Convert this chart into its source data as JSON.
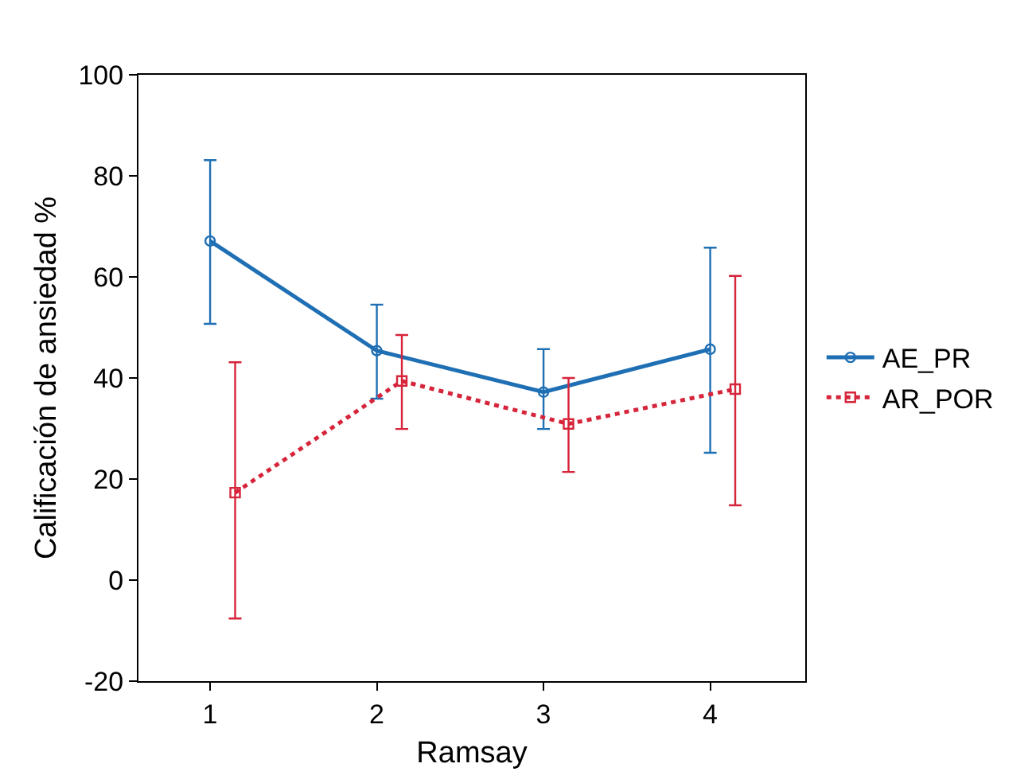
{
  "chart_data": {
    "type": "line",
    "xlabel": "Ramsay",
    "ylabel": "Calificación de ansiedad %",
    "xlim": [
      0.57,
      4.57
    ],
    "xticks": [
      1,
      2,
      3,
      4
    ],
    "ylim": [
      -20,
      100
    ],
    "yticks": [
      -20,
      0,
      20,
      40,
      60,
      80,
      100
    ],
    "legend": "right",
    "series": [
      {
        "name": "AE_PR",
        "color": "#1f6fb4",
        "marker": "circle",
        "line_style": "solid",
        "x": [
          1,
          2,
          3,
          4
        ],
        "values": [
          67.1,
          45.4,
          37.2,
          45.7
        ],
        "errors": [
          [
            50.7,
            83.1
          ],
          [
            35.9,
            54.5
          ],
          [
            29.9,
            45.7
          ],
          [
            25.2,
            65.8
          ]
        ]
      },
      {
        "name": "AR_POR",
        "color": "#d6243a",
        "marker": "square",
        "line_style": "dotted",
        "x": [
          1.15,
          2.15,
          3.15,
          4.15
        ],
        "values": [
          17.3,
          39.4,
          30.9,
          37.8
        ],
        "errors": [
          [
            -7.6,
            43.1
          ],
          [
            29.9,
            48.5
          ],
          [
            21.4,
            40.0
          ],
          [
            14.8,
            60.2
          ]
        ]
      }
    ]
  }
}
